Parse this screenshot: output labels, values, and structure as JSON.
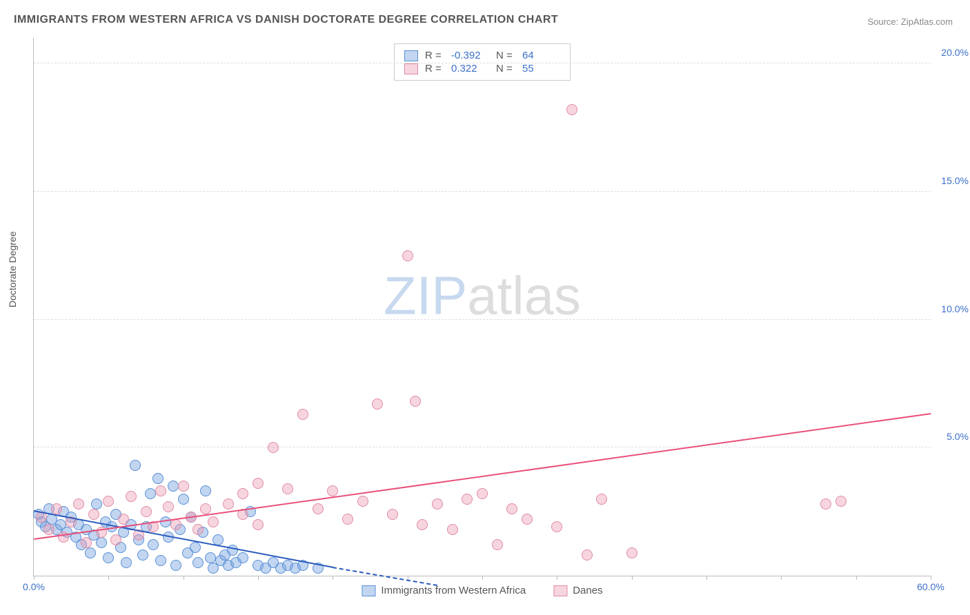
{
  "title": "IMMIGRANTS FROM WESTERN AFRICA VS DANISH DOCTORATE DEGREE CORRELATION CHART",
  "source_label": "Source: ",
  "source_name": "ZipAtlas.com",
  "ylabel": "Doctorate Degree",
  "watermark_zip": "ZIP",
  "watermark_atlas": "atlas",
  "chart": {
    "type": "scatter",
    "xlim": [
      0,
      60
    ],
    "ylim": [
      0,
      21
    ],
    "xtick_positions": [
      0,
      5,
      10,
      15,
      20,
      25,
      30,
      35,
      40,
      45,
      50,
      55,
      60
    ],
    "xtick_labels_shown": {
      "0": "0.0%",
      "60": "60.0%"
    },
    "ytick_positions": [
      5,
      10,
      15,
      20
    ],
    "ytick_labels": [
      "5.0%",
      "10.0%",
      "15.0%",
      "20.0%"
    ],
    "background_color": "#ffffff",
    "grid_color": "#dddddd",
    "axis_color": "#bbbbbb",
    "tick_label_color": "#3b6fc9",
    "marker_radius": 8,
    "series": [
      {
        "name": "Immigrants from Western Africa",
        "short": "blue",
        "marker_fill": "rgba(120,165,225,0.45)",
        "marker_stroke": "#5a8fd6",
        "trend_color": "#2a5bbd",
        "trend_solid": {
          "x1": 0,
          "y1": 2.5,
          "x2": 20,
          "y2": 0.3
        },
        "trend_dashed": {
          "x1": 20,
          "y1": 0.3,
          "x2": 27,
          "y2": -0.4
        },
        "R_label": "R =",
        "R_value": "-0.392",
        "N_label": "N =",
        "N_value": "64",
        "points": [
          [
            0.3,
            2.4
          ],
          [
            0.5,
            2.1
          ],
          [
            0.8,
            1.9
          ],
          [
            1.0,
            2.6
          ],
          [
            1.2,
            2.2
          ],
          [
            1.5,
            1.8
          ],
          [
            1.8,
            2.0
          ],
          [
            2.0,
            2.5
          ],
          [
            2.2,
            1.7
          ],
          [
            2.5,
            2.3
          ],
          [
            2.8,
            1.5
          ],
          [
            3.0,
            2.0
          ],
          [
            3.2,
            1.2
          ],
          [
            3.5,
            1.8
          ],
          [
            3.8,
            0.9
          ],
          [
            4.0,
            1.6
          ],
          [
            4.2,
            2.8
          ],
          [
            4.5,
            1.3
          ],
          [
            4.8,
            2.1
          ],
          [
            5.0,
            0.7
          ],
          [
            5.2,
            1.9
          ],
          [
            5.5,
            2.4
          ],
          [
            5.8,
            1.1
          ],
          [
            6.0,
            1.7
          ],
          [
            6.2,
            0.5
          ],
          [
            6.5,
            2.0
          ],
          [
            6.8,
            4.3
          ],
          [
            7.0,
            1.4
          ],
          [
            7.3,
            0.8
          ],
          [
            7.5,
            1.9
          ],
          [
            7.8,
            3.2
          ],
          [
            8.0,
            1.2
          ],
          [
            8.3,
            3.8
          ],
          [
            8.5,
            0.6
          ],
          [
            8.8,
            2.1
          ],
          [
            9.0,
            1.5
          ],
          [
            9.3,
            3.5
          ],
          [
            9.5,
            0.4
          ],
          [
            9.8,
            1.8
          ],
          [
            10.0,
            3.0
          ],
          [
            10.3,
            0.9
          ],
          [
            10.5,
            2.3
          ],
          [
            10.8,
            1.1
          ],
          [
            11.0,
            0.5
          ],
          [
            11.3,
            1.7
          ],
          [
            11.5,
            3.3
          ],
          [
            11.8,
            0.7
          ],
          [
            12.0,
            0.3
          ],
          [
            12.3,
            1.4
          ],
          [
            12.5,
            0.6
          ],
          [
            12.8,
            0.8
          ],
          [
            13.0,
            0.4
          ],
          [
            13.3,
            1.0
          ],
          [
            13.5,
            0.5
          ],
          [
            14.0,
            0.7
          ],
          [
            14.5,
            2.5
          ],
          [
            15.0,
            0.4
          ],
          [
            15.5,
            0.3
          ],
          [
            16.0,
            0.5
          ],
          [
            16.5,
            0.3
          ],
          [
            17.0,
            0.4
          ],
          [
            17.5,
            0.3
          ],
          [
            18.0,
            0.4
          ],
          [
            19.0,
            0.3
          ]
        ]
      },
      {
        "name": "Danes",
        "short": "pink",
        "marker_fill": "rgba(235,150,175,0.40)",
        "marker_stroke": "#e08ba5",
        "trend_color": "#e94f7a",
        "trend_solid": {
          "x1": 0,
          "y1": 1.4,
          "x2": 60,
          "y2": 6.3
        },
        "R_label": "R =",
        "R_value": " 0.322",
        "N_label": "N =",
        "N_value": "55",
        "points": [
          [
            0.5,
            2.3
          ],
          [
            1.0,
            1.8
          ],
          [
            1.5,
            2.6
          ],
          [
            2.0,
            1.5
          ],
          [
            2.5,
            2.1
          ],
          [
            3.0,
            2.8
          ],
          [
            3.5,
            1.3
          ],
          [
            4.0,
            2.4
          ],
          [
            4.5,
            1.7
          ],
          [
            5.0,
            2.9
          ],
          [
            5.5,
            1.4
          ],
          [
            6.0,
            2.2
          ],
          [
            6.5,
            3.1
          ],
          [
            7.0,
            1.6
          ],
          [
            7.5,
            2.5
          ],
          [
            8.0,
            1.9
          ],
          [
            8.5,
            3.3
          ],
          [
            9.0,
            2.7
          ],
          [
            9.5,
            2.0
          ],
          [
            10.0,
            3.5
          ],
          [
            10.5,
            2.3
          ],
          [
            11.0,
            1.8
          ],
          [
            11.5,
            2.6
          ],
          [
            12.0,
            2.1
          ],
          [
            13.0,
            2.8
          ],
          [
            14.0,
            3.2
          ],
          [
            14.0,
            2.4
          ],
          [
            15.0,
            3.6
          ],
          [
            15.0,
            2.0
          ],
          [
            16.0,
            5.0
          ],
          [
            17.0,
            3.4
          ],
          [
            18.0,
            6.3
          ],
          [
            19.0,
            2.6
          ],
          [
            20.0,
            3.3
          ],
          [
            21.0,
            2.2
          ],
          [
            22.0,
            2.9
          ],
          [
            23.0,
            6.7
          ],
          [
            24.0,
            2.4
          ],
          [
            25.0,
            12.5
          ],
          [
            25.5,
            6.8
          ],
          [
            26.0,
            2.0
          ],
          [
            27.0,
            2.8
          ],
          [
            28.0,
            1.8
          ],
          [
            29.0,
            3.0
          ],
          [
            30.0,
            3.2
          ],
          [
            31.0,
            1.2
          ],
          [
            32.0,
            2.6
          ],
          [
            33.0,
            2.2
          ],
          [
            35.0,
            1.9
          ],
          [
            36.0,
            18.2
          ],
          [
            37.0,
            0.8
          ],
          [
            38.0,
            3.0
          ],
          [
            40.0,
            0.9
          ],
          [
            53.0,
            2.8
          ],
          [
            54.0,
            2.9
          ]
        ]
      }
    ]
  },
  "legend_bottom": [
    {
      "swatch_fill": "rgba(120,165,225,0.45)",
      "swatch_stroke": "#5a8fd6",
      "label": "Immigrants from Western Africa"
    },
    {
      "swatch_fill": "rgba(235,150,175,0.40)",
      "swatch_stroke": "#e08ba5",
      "label": "Danes"
    }
  ]
}
